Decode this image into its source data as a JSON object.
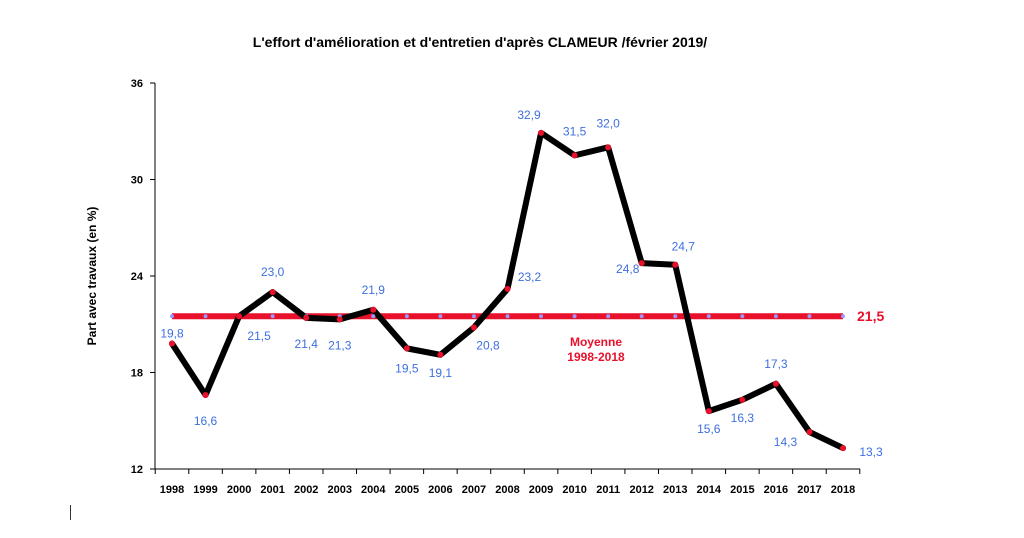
{
  "chart_data": {
    "type": "line",
    "title": "L'effort d'amélioration  et d'entretien d'après CLAMEUR /février 2019/",
    "ylabel": "Part avec travaux (en %)",
    "xlabel": "",
    "ylim": [
      12,
      36
    ],
    "yticks": [
      12,
      18,
      24,
      30,
      36
    ],
    "grid": false,
    "categories": [
      "1998",
      "1999",
      "2000",
      "2001",
      "2002",
      "2003",
      "2004",
      "2005",
      "2006",
      "2007",
      "2008",
      "2009",
      "2010",
      "2011",
      "2012",
      "2013",
      "2014",
      "2015",
      "2016",
      "2017",
      "2018"
    ],
    "series": [
      {
        "values": [
          19.8,
          16.6,
          21.5,
          23.0,
          21.4,
          21.3,
          21.9,
          19.5,
          19.1,
          20.8,
          23.2,
          32.9,
          31.5,
          32.0,
          24.8,
          24.7,
          15.6,
          16.3,
          17.3,
          14.3,
          13.3
        ],
        "labels": [
          "19,8",
          "16,6",
          "21,5",
          "23,0",
          "21,4",
          "21,3",
          "21,9",
          "19,5",
          "19,1",
          "20,8",
          "23,2",
          "32,9",
          "31,5",
          "32,0",
          "24,8",
          "24,7",
          "15,6",
          "16,3",
          "17,3",
          "14,3",
          "13,3"
        ],
        "color": "#000000",
        "marker_color": "#e8102a",
        "label_color": "#3d6fe0"
      }
    ],
    "mean": {
      "value": 21.5,
      "value_label": "21,5",
      "label_line1": "Moyenne",
      "label_line2": "1998-2018",
      "color": "#e8102a",
      "marker_color": "#9999ff"
    }
  }
}
